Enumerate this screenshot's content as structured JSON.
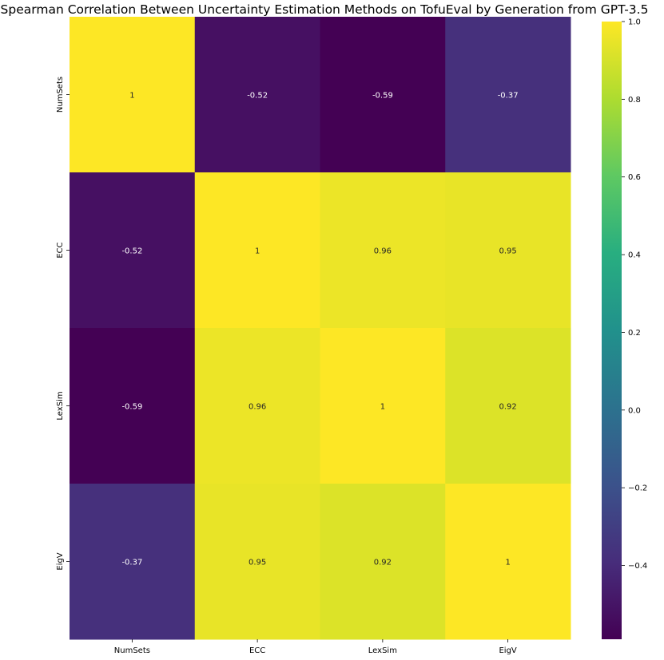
{
  "chart_data": {
    "type": "heatmap",
    "title": "Spearman Correlation Between Uncertainty Estimation Methods on TofuEval by Generation from GPT-3.5",
    "xlabel": "",
    "ylabel": "",
    "row_labels": [
      "NumSets",
      "ECC",
      "LexSim",
      "EigV"
    ],
    "col_labels": [
      "NumSets",
      "ECC",
      "LexSim",
      "EigV"
    ],
    "values": [
      [
        1.0,
        -0.52,
        -0.59,
        -0.37
      ],
      [
        -0.52,
        1.0,
        0.96,
        0.95
      ],
      [
        -0.59,
        0.96,
        1.0,
        0.92
      ],
      [
        -0.37,
        0.95,
        0.92,
        1.0
      ]
    ],
    "annotations": [
      [
        "1",
        "-0.52",
        "-0.59",
        "-0.37"
      ],
      [
        "-0.52",
        "1",
        "0.96",
        "0.95"
      ],
      [
        "-0.59",
        "0.96",
        "1",
        "0.92"
      ],
      [
        "-0.37",
        "0.95",
        "0.92",
        "1"
      ]
    ],
    "colormap": "viridis",
    "vmin": -0.59,
    "vmax": 1.0,
    "colorbar_ticks": [
      -0.4,
      -0.2,
      0.0,
      0.2,
      0.4,
      0.6,
      0.8,
      1.0
    ],
    "colorbar_tick_labels": [
      "−0.4",
      "−0.2",
      "0.0",
      "0.2",
      "0.4",
      "0.6",
      "0.8",
      "1.0"
    ],
    "grid": false,
    "legend": "colorbar-right"
  }
}
